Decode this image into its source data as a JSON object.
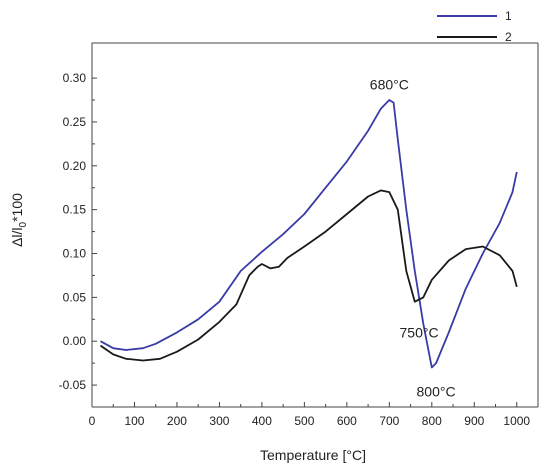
{
  "chart_data": {
    "type": "line",
    "xlabel": "Temperature [°C]",
    "ylabel_main": "Δl/l",
    "ylabel_sub": "0",
    "ylabel_suffix": "*100",
    "xlim": [
      0,
      1050
    ],
    "ylim": [
      -0.075,
      0.34
    ],
    "x_ticks": [
      0,
      100,
      200,
      300,
      400,
      500,
      600,
      700,
      800,
      900,
      1000
    ],
    "x_tick_labels": [
      "0",
      "100",
      "200",
      "300",
      "400",
      "500",
      "600",
      "700",
      "800",
      "900",
      "1000"
    ],
    "y_ticks": [
      -0.05,
      0.0,
      0.05,
      0.1,
      0.15,
      0.2,
      0.25,
      0.3
    ],
    "y_tick_labels": [
      "-0.05",
      "0.00",
      "0.05",
      "0.10",
      "0.15",
      "0.20",
      "0.25",
      "0.30"
    ],
    "grid": false,
    "legend_position": "top-right",
    "series": [
      {
        "name": "1",
        "color": "#3a3aa8",
        "points": [
          [
            20,
            0.0
          ],
          [
            50,
            -0.008
          ],
          [
            80,
            -0.01
          ],
          [
            120,
            -0.008
          ],
          [
            150,
            -0.003
          ],
          [
            200,
            0.01
          ],
          [
            250,
            0.025
          ],
          [
            300,
            0.045
          ],
          [
            350,
            0.08
          ],
          [
            400,
            0.102
          ],
          [
            450,
            0.122
          ],
          [
            500,
            0.145
          ],
          [
            550,
            0.175
          ],
          [
            600,
            0.205
          ],
          [
            650,
            0.24
          ],
          [
            680,
            0.265
          ],
          [
            700,
            0.275
          ],
          [
            710,
            0.272
          ],
          [
            720,
            0.23
          ],
          [
            740,
            0.15
          ],
          [
            760,
            0.08
          ],
          [
            780,
            0.02
          ],
          [
            800,
            -0.03
          ],
          [
            810,
            -0.025
          ],
          [
            840,
            0.01
          ],
          [
            880,
            0.06
          ],
          [
            920,
            0.1
          ],
          [
            960,
            0.135
          ],
          [
            990,
            0.17
          ],
          [
            1000,
            0.193
          ]
        ]
      },
      {
        "name": "2",
        "color": "#1a1a1a",
        "points": [
          [
            20,
            -0.005
          ],
          [
            50,
            -0.015
          ],
          [
            80,
            -0.02
          ],
          [
            120,
            -0.022
          ],
          [
            160,
            -0.02
          ],
          [
            200,
            -0.012
          ],
          [
            250,
            0.002
          ],
          [
            300,
            0.022
          ],
          [
            340,
            0.042
          ],
          [
            370,
            0.075
          ],
          [
            390,
            0.085
          ],
          [
            400,
            0.088
          ],
          [
            420,
            0.083
          ],
          [
            440,
            0.085
          ],
          [
            460,
            0.095
          ],
          [
            500,
            0.108
          ],
          [
            550,
            0.125
          ],
          [
            600,
            0.145
          ],
          [
            650,
            0.165
          ],
          [
            680,
            0.172
          ],
          [
            700,
            0.17
          ],
          [
            720,
            0.15
          ],
          [
            740,
            0.08
          ],
          [
            760,
            0.045
          ],
          [
            780,
            0.05
          ],
          [
            800,
            0.07
          ],
          [
            840,
            0.092
          ],
          [
            880,
            0.105
          ],
          [
            920,
            0.108
          ],
          [
            960,
            0.098
          ],
          [
            990,
            0.08
          ],
          [
            1000,
            0.062
          ]
        ]
      }
    ],
    "annotations": [
      {
        "text": "680°C",
        "x": 700,
        "y": 0.287
      },
      {
        "text": "750°C",
        "x": 770,
        "y": 0.004
      },
      {
        "text": "800°C",
        "x": 810,
        "y": -0.063
      }
    ]
  }
}
